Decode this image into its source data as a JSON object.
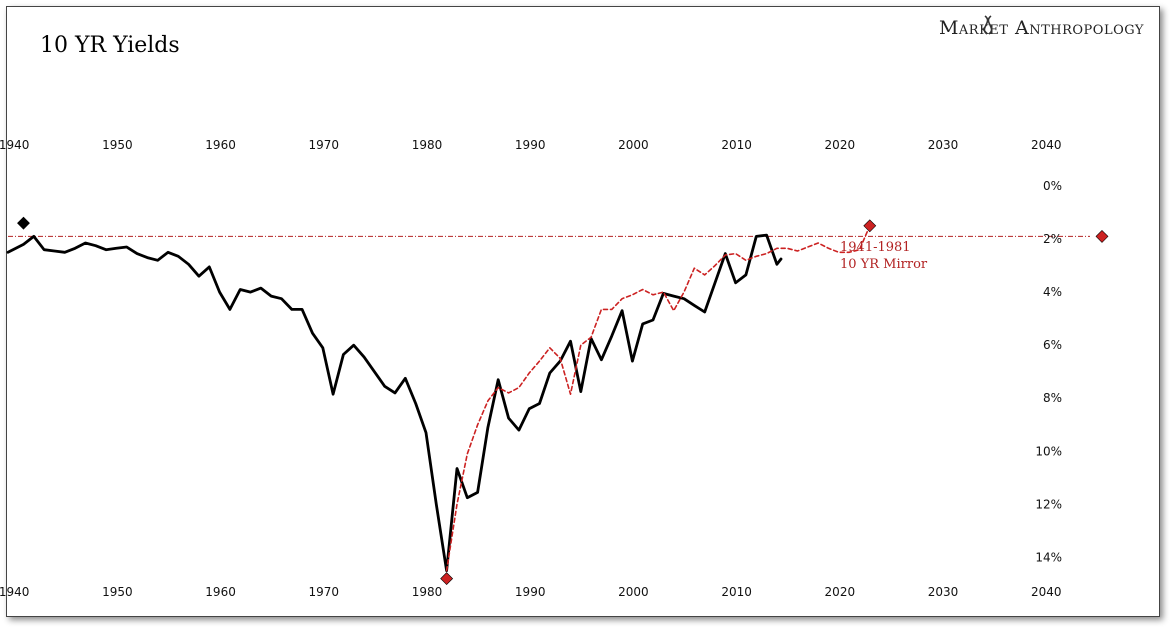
{
  "chart_data": {
    "type": "line",
    "title": "10 YR Yields",
    "brand": "Market Anthropology",
    "x_ticks": [
      1940,
      1950,
      1960,
      1970,
      1980,
      1990,
      2000,
      2010,
      2020,
      2030,
      2040
    ],
    "xlim": [
      1939.5,
      2045.5
    ],
    "y_ticks": [
      0,
      2,
      4,
      6,
      8,
      10,
      12,
      14
    ],
    "y_tick_labels": [
      "0%",
      "2%",
      "4%",
      "6%",
      "8%",
      "10%",
      "12%",
      "14%"
    ],
    "ylim": [
      0,
      14.4
    ],
    "y_inverted": true,
    "reference_line": {
      "value": 1.9,
      "color": "#b22222"
    },
    "annotation": [
      "1941-1981",
      "10 YR Mirror"
    ],
    "colors": {
      "actual": "#000000",
      "mirror": "#cc2222"
    },
    "series": [
      {
        "key": "actual",
        "color": "#000000",
        "style": "solid",
        "x": [
          1939.5,
          1941,
          1942,
          1943,
          1944,
          1945,
          1946,
          1947,
          1948,
          1949,
          1950,
          1951,
          1952,
          1953,
          1954,
          1955,
          1956,
          1957,
          1958,
          1959,
          1960,
          1961,
          1962,
          1963,
          1964,
          1965,
          1966,
          1967,
          1968,
          1969,
          1970,
          1971,
          1972,
          1973,
          1974,
          1975,
          1976,
          1977,
          1978,
          1979,
          1980,
          1981,
          1982,
          1983,
          1984,
          1985,
          1986,
          1987,
          1988,
          1989,
          1990,
          1991,
          1992,
          1993,
          1994,
          1995,
          1996,
          1997,
          1998,
          1999,
          2000,
          2001,
          2002,
          2003,
          2004,
          2005,
          2006,
          2007,
          2008,
          2009,
          2010,
          2011,
          2012,
          2013,
          2014,
          2014.4
        ],
        "values": [
          2.5,
          2.2,
          1.9,
          2.4,
          2.45,
          2.5,
          2.35,
          2.15,
          2.25,
          2.4,
          2.35,
          2.3,
          2.55,
          2.7,
          2.8,
          2.5,
          2.65,
          2.95,
          3.4,
          3.05,
          4.0,
          4.65,
          3.9,
          4.0,
          3.85,
          4.15,
          4.25,
          4.65,
          4.65,
          5.55,
          6.1,
          7.85,
          6.35,
          6.0,
          6.45,
          7.0,
          7.55,
          7.8,
          7.25,
          8.2,
          9.3,
          12.0,
          14.5,
          10.65,
          11.75,
          11.55,
          9.1,
          7.3,
          8.75,
          9.2,
          8.4,
          8.2,
          7.05,
          6.6,
          5.85,
          7.75,
          5.75,
          6.55,
          5.65,
          4.7,
          6.6,
          5.2,
          5.05,
          4.05,
          4.15,
          4.25,
          4.5,
          4.75,
          3.65,
          2.55,
          3.65,
          3.35,
          1.9,
          1.85,
          2.95,
          2.75
        ]
      },
      {
        "key": "mirror",
        "color": "#cc2222",
        "style": "dashed",
        "x": [
          1982,
          1983,
          1984,
          1985,
          1986,
          1987,
          1988,
          1989,
          1990,
          1991,
          1992,
          1993,
          1994,
          1995,
          1996,
          1997,
          1998,
          1999,
          2000,
          2001,
          2002,
          2003,
          2004,
          2005,
          2006,
          2007,
          2008,
          2009,
          2010,
          2011,
          2012,
          2013,
          2014,
          2015,
          2016,
          2017,
          2018,
          2019,
          2020,
          2021,
          2022,
          2023
        ],
        "values": [
          14.5,
          12.0,
          10.1,
          9.0,
          8.1,
          7.6,
          7.8,
          7.6,
          7.05,
          6.6,
          6.1,
          6.5,
          7.85,
          6.0,
          5.7,
          4.65,
          4.65,
          4.25,
          4.1,
          3.9,
          4.1,
          4.0,
          4.7,
          4.0,
          3.1,
          3.35,
          3.0,
          2.6,
          2.55,
          2.8,
          2.65,
          2.55,
          2.35,
          2.35,
          2.45,
          2.3,
          2.15,
          2.35,
          2.5,
          2.5,
          2.4,
          1.5
        ]
      }
    ],
    "markers": [
      {
        "x": 1941,
        "y": 1.4,
        "color": "#000000"
      },
      {
        "x": 1982,
        "y": 14.8,
        "color": "#cc2222"
      },
      {
        "x": 2023,
        "y": 1.5,
        "color": "#cc2222"
      },
      {
        "x": 2045.5,
        "y": 1.9,
        "color": "#cc2222"
      }
    ]
  }
}
